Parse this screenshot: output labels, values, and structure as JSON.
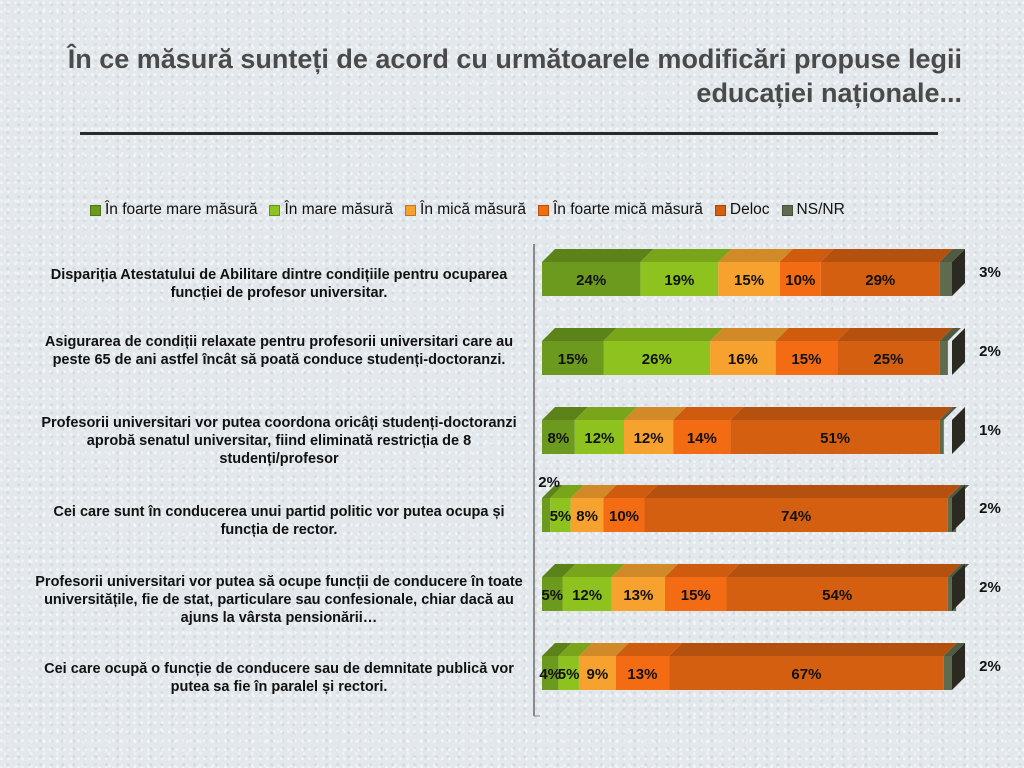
{
  "title": "În ce măsură sunteți de acord cu următoarele modificări propuse legii educației naționale...",
  "colors": {
    "foarte_mare": "#6b9a1f",
    "mare": "#8dc21f",
    "mica": "#f7a12f",
    "foarte_mica": "#f36b12",
    "deloc": "#d45f10",
    "nsnr": "#5f6b4f"
  },
  "chart_data": {
    "type": "bar",
    "orientation": "horizontal",
    "stacked": true,
    "xlim": [
      0,
      100
    ],
    "legend": "top",
    "categories": [
      "Dispariția Atestatului de Abilitare dintre condițiile pentru ocuparea funcției de profesor universitar.",
      "Asigurarea de condiții relaxate pentru profesorii universitari care au peste 65 de ani astfel încât să poată conduce studenți-doctoranzi.",
      "Profesorii universitari vor putea coordona oricâți studenți-doctoranzi aprobă senatul universitar, fiind eliminată restricția de 8 studenți/profesor",
      "Cei care sunt în conducerea unui partid politic vor putea ocupa și funcția de rector.",
      "Profesorii universitari vor putea să ocupe funcții de conducere în toate universitățile, fie de stat, particulare sau confesionale, chiar dacă au ajuns la vârsta pensionării…",
      "Cei care ocupă o funcție de conducere sau de demnitate publică vor putea sa fie în paralel și rectori."
    ],
    "series": [
      {
        "name": "În foarte mare măsură",
        "color_key": "foarte_mare",
        "values": [
          24,
          15,
          8,
          2,
          5,
          4
        ]
      },
      {
        "name": "În mare măsură",
        "color_key": "mare",
        "values": [
          19,
          26,
          12,
          5,
          12,
          5
        ]
      },
      {
        "name": "În mică măsură",
        "color_key": "mica",
        "values": [
          15,
          16,
          12,
          8,
          13,
          9
        ]
      },
      {
        "name": "În foarte mică măsură",
        "color_key": "foarte_mica",
        "values": [
          10,
          15,
          14,
          10,
          15,
          13
        ]
      },
      {
        "name": "Deloc",
        "color_key": "deloc",
        "values": [
          29,
          25,
          51,
          74,
          54,
          67
        ]
      },
      {
        "name": "NS/NR",
        "color_key": "nsnr",
        "values": [
          3,
          2,
          1,
          2,
          2,
          2
        ]
      }
    ],
    "data_labels": [
      [
        "24%",
        "19%",
        "15%",
        "10%",
        "29%",
        "3%"
      ],
      [
        "15%",
        "26%",
        "16%",
        "15%",
        "25%",
        "2%"
      ],
      [
        "8%",
        "12%",
        "12%",
        "14%",
        "51%",
        "1%"
      ],
      [
        "2%",
        "5%",
        "8%",
        "10%",
        "74%",
        "2%"
      ],
      [
        "5%",
        "12%",
        "13%",
        "15%",
        "54%",
        "2%"
      ],
      [
        "4%",
        "5%",
        "9%",
        "13%",
        "67%",
        "2%"
      ]
    ]
  }
}
